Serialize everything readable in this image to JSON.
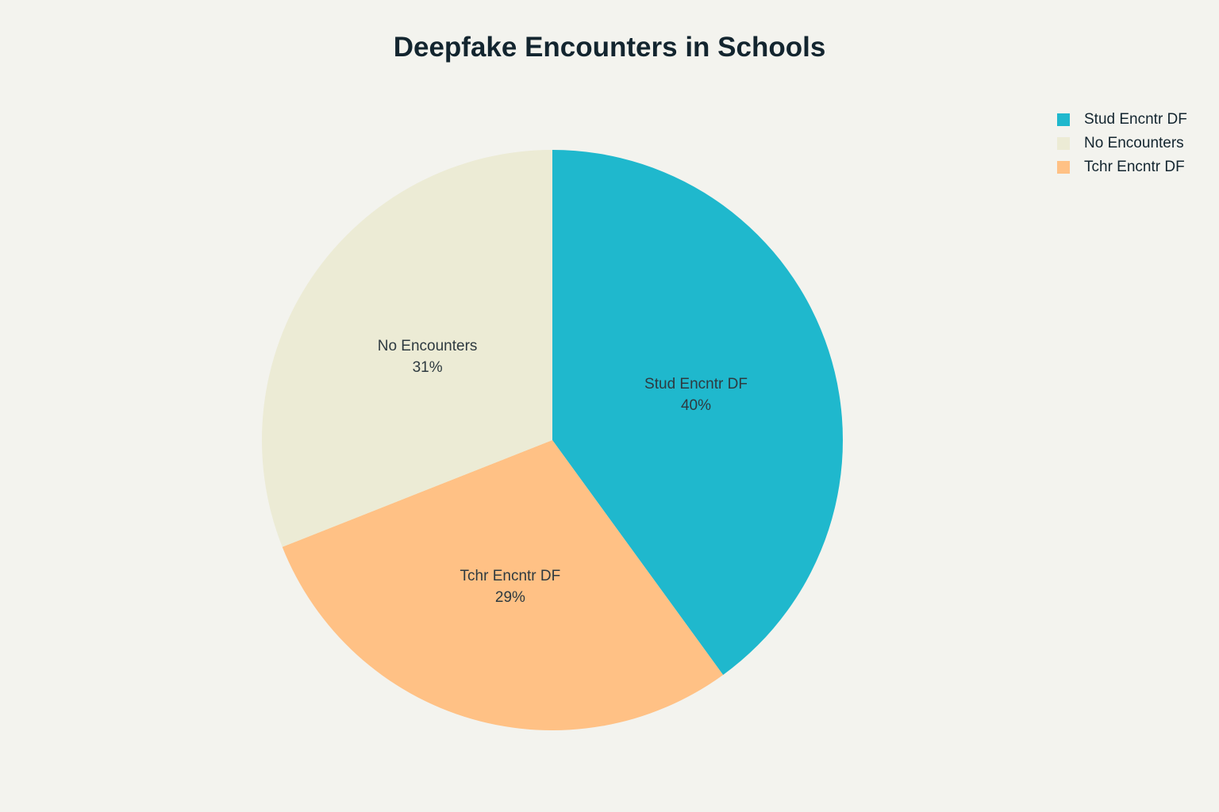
{
  "chart_data": {
    "type": "pie",
    "title": "Deepfake Encounters in Schools",
    "categories": [
      "Stud Encntr DF",
      "No Encounters",
      "Tchr Encntr DF"
    ],
    "values": [
      40,
      31,
      29
    ],
    "value_labels": [
      "40%",
      "31%",
      "29%"
    ],
    "colors": [
      "#1FB8CD",
      "#ECEBD5",
      "#FFC185"
    ],
    "legend": {
      "position": "top-right",
      "entries": [
        "Stud Encntr DF",
        "No Encounters",
        "Tchr Encntr DF"
      ]
    }
  }
}
